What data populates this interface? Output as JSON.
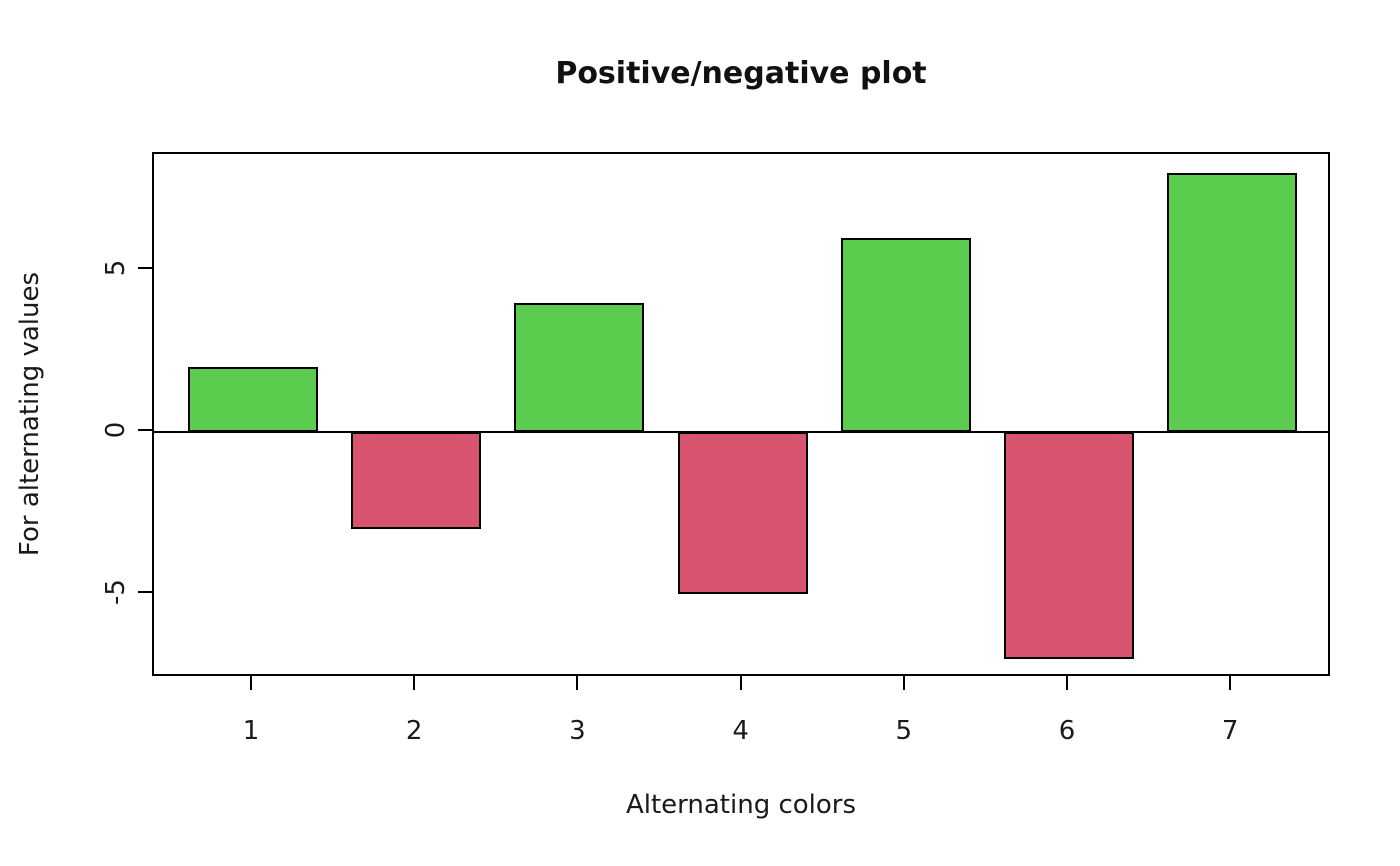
{
  "chart_data": {
    "type": "bar",
    "title": "Positive/negative plot",
    "xlabel": "Alternating colors",
    "ylabel": "For alternating values",
    "categories": [
      "1",
      "2",
      "3",
      "4",
      "5",
      "6",
      "7"
    ],
    "values": [
      2,
      -3,
      4,
      -5,
      6,
      -7,
      8
    ],
    "ylim": [
      -7.6,
      8.6
    ],
    "yticks": [
      -5,
      0,
      5
    ],
    "ytick_labels": [
      "-5",
      "0",
      "5"
    ],
    "positive_color": "#5BCC4E",
    "negative_color": "#D9546E",
    "bar_border_color": "#000000",
    "axis_color": "#000000",
    "grid": false,
    "legend": false,
    "background_color": "#FFFFFF"
  }
}
